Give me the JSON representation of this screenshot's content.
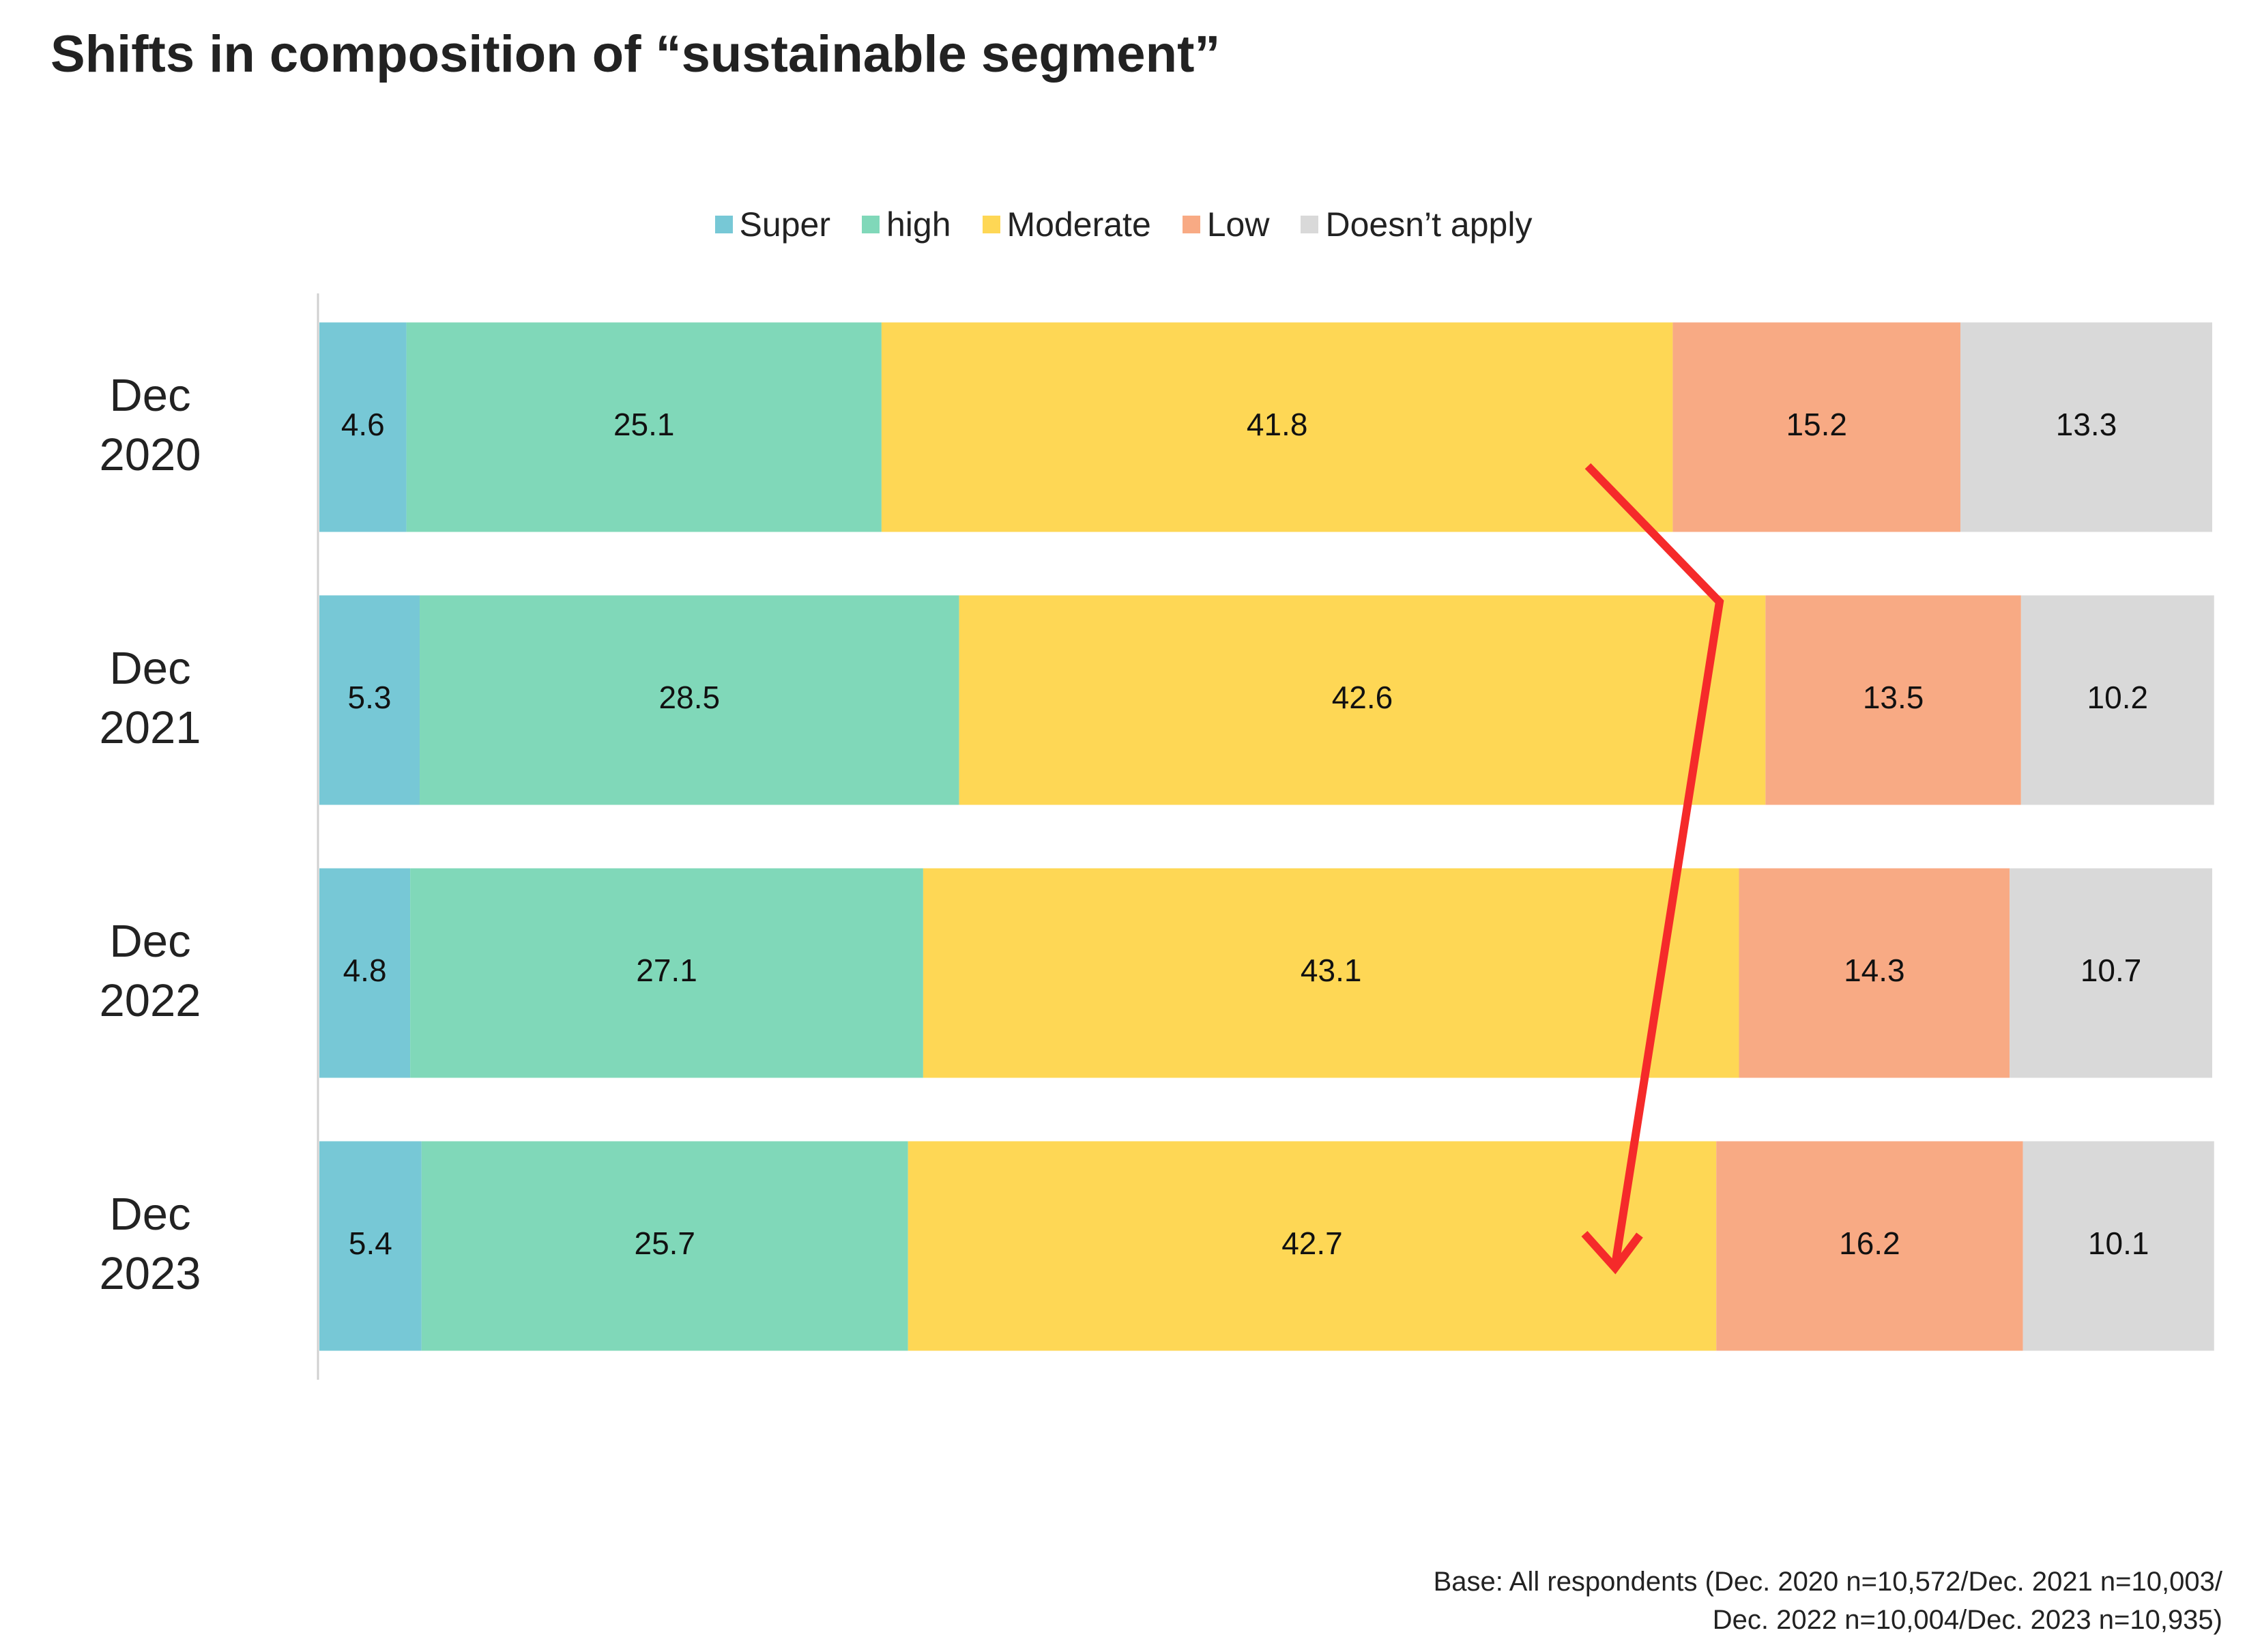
{
  "chart_data": {
    "type": "stacked-barh",
    "title": "Shifts in composition of “sustainable segment”",
    "categories": [
      "Dec 2020",
      "Dec 2021",
      "Dec 2022",
      "Dec 2023"
    ],
    "series": [
      {
        "name": "Super",
        "color": "#77c8d6",
        "values": [
          4.6,
          5.3,
          4.8,
          5.4
        ]
      },
      {
        "name": "high",
        "color": "#80d8b9",
        "values": [
          25.1,
          28.5,
          27.1,
          25.7
        ]
      },
      {
        "name": "Moderate",
        "color": "#fed755",
        "values": [
          41.8,
          42.6,
          43.1,
          42.7
        ]
      },
      {
        "name": "Low",
        "color": "#f8aa84",
        "values": [
          15.2,
          13.5,
          14.3,
          16.2
        ]
      },
      {
        "name": "Doesn’t apply",
        "color": "#d9d9d9",
        "values": [
          13.3,
          10.2,
          10.7,
          10.1
        ]
      }
    ],
    "xlim": [
      0,
      100
    ],
    "legend": "top",
    "footnote": [
      "Base: All respondents (Dec. 2020 n=10,572/Dec. 2021 n=10,003/",
      "Dec. 2022 n=10,004/Dec. 2023 n=10,935)"
    ]
  }
}
